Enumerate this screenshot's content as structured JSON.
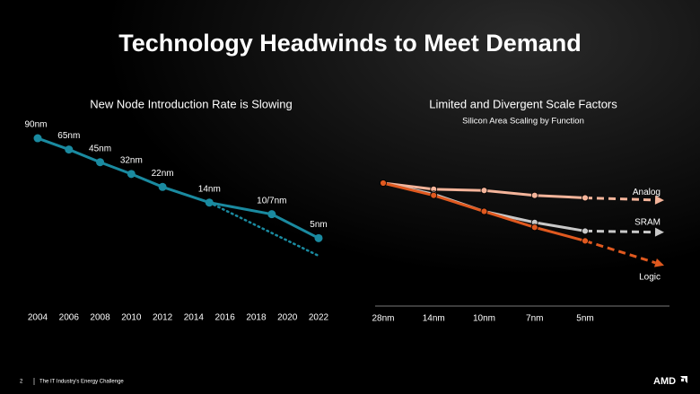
{
  "title": "Technology Headwinds to Meet Demand",
  "footer": {
    "page": "2",
    "text": "The IT Industry's Energy Challenge",
    "logo": "AMD"
  },
  "chart_data": [
    {
      "type": "line",
      "title": "New Node Introduction Rate is Slowing",
      "x": [
        2004,
        2006,
        2008,
        2010,
        2012,
        2015,
        2019,
        2022
      ],
      "xlim": [
        2004,
        2022
      ],
      "xticks": [
        2004,
        2006,
        2008,
        2010,
        2012,
        2014,
        2016,
        2018,
        2020,
        2022
      ],
      "log_y": true,
      "ylim": [
        3,
        100
      ],
      "series": [
        {
          "color": "#1a8aa0",
          "values": [
            90,
            65,
            45,
            32,
            22,
            14,
            10,
            5
          ],
          "value_labels": [
            "90nm",
            "65nm",
            "45nm",
            "32nm",
            "22nm",
            "14nm",
            "10/7nm",
            "5nm"
          ]
        },
        {
          "color": "#1a8aa0",
          "dashed": true,
          "x": [
            2015,
            2022
          ],
          "values": [
            14,
            3
          ]
        }
      ]
    },
    {
      "type": "line",
      "title": "Limited and Divergent Scale Factors",
      "subtitle": "Silicon Area Scaling by Function",
      "categories": [
        "28nm",
        "14nm",
        "10nm",
        "7nm",
        "5nm",
        null
      ],
      "ylim": [
        0,
        1
      ],
      "series": [
        {
          "name": "Analog",
          "color": "#f4b49a",
          "values": [
            1,
            0.95,
            0.94,
            0.9,
            0.88,
            0.86
          ]
        },
        {
          "name": "SRAM",
          "color": "#c8c8c8",
          "values": [
            1,
            0.91,
            0.77,
            0.68,
            0.61,
            0.6
          ]
        },
        {
          "name": "Logic",
          "color": "#e0591f",
          "values": [
            1,
            0.9,
            0.77,
            0.64,
            0.53,
            0.33
          ]
        }
      ]
    }
  ]
}
